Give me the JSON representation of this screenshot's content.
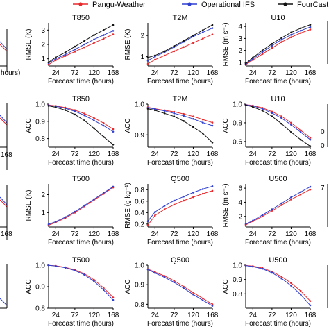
{
  "legend": {
    "placement": "top-center",
    "items": [
      {
        "label": "Pangu-Weather",
        "color": "#e8282b",
        "marker": "dot"
      },
      {
        "label": "Operational IFS",
        "color": "#2f3fd0",
        "marker": "dot"
      },
      {
        "label": "FourCastNet",
        "color": "#111111",
        "marker": "dot"
      }
    ]
  },
  "partial_edge_labels": {
    "left_col": [
      "hours)",
      "168",
      "168"
    ],
    "right_col": [
      "0",
      "0",
      "7"
    ]
  },
  "chart_data": [
    {
      "type": "line",
      "title": "T850",
      "xlabel": "Forecast time (hours)",
      "ylabel": "RMSE (K)",
      "xlim": [
        6,
        168
      ],
      "ylim": [
        0.5,
        3.5
      ],
      "xticks": [
        24,
        72,
        120,
        168
      ],
      "yticks": [
        1,
        2,
        3
      ],
      "ytick_labels": [
        "1",
        "2",
        "3"
      ],
      "x": [
        6,
        24,
        48,
        72,
        96,
        120,
        144,
        168
      ],
      "series": [
        {
          "name": "Pangu-Weather",
          "values": [
            0.6,
            0.9,
            1.2,
            1.5,
            1.8,
            2.1,
            2.4,
            2.7
          ]
        },
        {
          "name": "Operational IFS",
          "values": [
            0.7,
            1.0,
            1.3,
            1.65,
            2.0,
            2.35,
            2.65,
            2.95
          ]
        },
        {
          "name": "FourCastNet",
          "values": [
            0.75,
            1.1,
            1.45,
            1.85,
            2.25,
            2.65,
            3.0,
            3.35
          ]
        }
      ]
    },
    {
      "type": "line",
      "title": "T2M",
      "xlabel": "Forecast time (hours)",
      "ylabel": "RMSE (K)",
      "xlim": [
        6,
        168
      ],
      "ylim": [
        0.55,
        2.6
      ],
      "xticks": [
        24,
        72,
        120,
        168
      ],
      "yticks": [
        1,
        2
      ],
      "ytick_labels": [
        "1",
        "2"
      ],
      "x": [
        6,
        24,
        48,
        72,
        96,
        120,
        144,
        168
      ],
      "series": [
        {
          "name": "Pangu-Weather",
          "values": [
            0.65,
            0.85,
            1.05,
            1.25,
            1.45,
            1.65,
            1.85,
            2.05
          ]
        },
        {
          "name": "Operational IFS",
          "values": [
            0.8,
            1.0,
            1.2,
            1.45,
            1.7,
            1.95,
            2.15,
            2.35
          ]
        },
        {
          "name": "FourCastNet",
          "values": [
            0.95,
            1.05,
            1.25,
            1.5,
            1.75,
            2.0,
            2.25,
            2.5
          ]
        }
      ]
    },
    {
      "type": "line",
      "title": "U10",
      "xlabel": "Forecast time (hours)",
      "ylabel": "RMSE (m s⁻¹)",
      "xlim": [
        6,
        168
      ],
      "ylim": [
        0.7,
        4.3
      ],
      "xticks": [
        24,
        72,
        120,
        168
      ],
      "yticks": [
        1,
        2,
        3,
        4
      ],
      "ytick_labels": [
        "1",
        "2",
        "3",
        "4"
      ],
      "x": [
        6,
        24,
        48,
        72,
        96,
        120,
        144,
        168
      ],
      "series": [
        {
          "name": "Pangu-Weather",
          "values": [
            0.8,
            1.2,
            1.7,
            2.2,
            2.7,
            3.1,
            3.45,
            3.75
          ]
        },
        {
          "name": "Operational IFS",
          "values": [
            0.85,
            1.3,
            1.85,
            2.4,
            2.9,
            3.3,
            3.65,
            3.95
          ]
        },
        {
          "name": "FourCastNet",
          "values": [
            0.9,
            1.4,
            2.0,
            2.55,
            3.05,
            3.5,
            3.85,
            4.15
          ]
        }
      ]
    },
    {
      "type": "line",
      "title": "T850",
      "xlabel": "Forecast time (hours)",
      "ylabel": "ACC",
      "xlim": [
        6,
        168
      ],
      "ylim": [
        0.75,
        1.0
      ],
      "xticks": [
        24,
        72,
        120,
        168
      ],
      "yticks": [
        0.8,
        0.9,
        1.0
      ],
      "ytick_labels": [
        "0.8",
        "0.9",
        "1.0"
      ],
      "x": [
        6,
        24,
        48,
        72,
        96,
        120,
        144,
        168
      ],
      "series": [
        {
          "name": "Pangu-Weather",
          "values": [
            0.995,
            0.99,
            0.98,
            0.965,
            0.945,
            0.92,
            0.89,
            0.855
          ]
        },
        {
          "name": "Operational IFS",
          "values": [
            0.993,
            0.988,
            0.976,
            0.958,
            0.935,
            0.905,
            0.875,
            0.84
          ]
        },
        {
          "name": "FourCastNet",
          "values": [
            0.99,
            0.982,
            0.965,
            0.94,
            0.905,
            0.86,
            0.81,
            0.765
          ]
        }
      ]
    },
    {
      "type": "line",
      "title": "T2M",
      "xlabel": "Forecast time (hours)",
      "ylabel": "ACC",
      "xlim": [
        6,
        168
      ],
      "ylim": [
        0.86,
        1.0
      ],
      "xticks": [
        24,
        72,
        120,
        168
      ],
      "yticks": [
        0.9,
        1.0
      ],
      "ytick_labels": [
        "0.9",
        "1.0"
      ],
      "x": [
        6,
        24,
        48,
        72,
        96,
        120,
        144,
        168
      ],
      "series": [
        {
          "name": "Pangu-Weather",
          "values": [
            0.99,
            0.985,
            0.98,
            0.975,
            0.968,
            0.96,
            0.95,
            0.94
          ]
        },
        {
          "name": "Operational IFS",
          "values": [
            0.988,
            0.984,
            0.978,
            0.97,
            0.962,
            0.952,
            0.94,
            0.93
          ]
        },
        {
          "name": "FourCastNet",
          "values": [
            0.985,
            0.98,
            0.97,
            0.96,
            0.945,
            0.925,
            0.905,
            0.875
          ]
        }
      ]
    },
    {
      "type": "line",
      "title": "U10",
      "xlabel": "Forecast time (hours)",
      "ylabel": "ACC",
      "xlim": [
        6,
        168
      ],
      "ylim": [
        0.54,
        1.0
      ],
      "xticks": [
        24,
        72,
        120,
        168
      ],
      "yticks": [
        0.6,
        0.8,
        1.0
      ],
      "ytick_labels": [
        "0.6",
        "0.8",
        "1.0"
      ],
      "x": [
        6,
        24,
        48,
        72,
        96,
        120,
        144,
        168
      ],
      "series": [
        {
          "name": "Pangu-Weather",
          "values": [
            0.995,
            0.985,
            0.96,
            0.92,
            0.87,
            0.8,
            0.72,
            0.64
          ]
        },
        {
          "name": "Operational IFS",
          "values": [
            0.993,
            0.98,
            0.95,
            0.905,
            0.85,
            0.78,
            0.7,
            0.62
          ]
        },
        {
          "name": "FourCastNet",
          "values": [
            0.99,
            0.97,
            0.93,
            0.87,
            0.79,
            0.7,
            0.62,
            0.55
          ]
        }
      ]
    },
    {
      "type": "line",
      "title": "T500",
      "xlabel": "Forecast time (hours)",
      "ylabel": "RMSE (K)",
      "xlim": [
        6,
        168
      ],
      "ylim": [
        0.2,
        2.6
      ],
      "xticks": [
        24,
        72,
        120,
        168
      ],
      "yticks": [
        1,
        2
      ],
      "ytick_labels": [
        "1",
        "2"
      ],
      "x": [
        6,
        24,
        48,
        72,
        96,
        120,
        144,
        168
      ],
      "series": [
        {
          "name": "Pangu-Weather",
          "values": [
            0.3,
            0.45,
            0.7,
            1.0,
            1.35,
            1.7,
            2.05,
            2.4
          ]
        },
        {
          "name": "Operational IFS",
          "values": [
            0.35,
            0.5,
            0.75,
            1.05,
            1.4,
            1.75,
            2.1,
            2.45
          ]
        }
      ]
    },
    {
      "type": "line",
      "title": "Q500",
      "xlabel": "Forecast time (hours)",
      "ylabel": "RMSE (g kg⁻¹)",
      "xlim": [
        6,
        168
      ],
      "ylim": [
        0.15,
        0.9
      ],
      "xticks": [
        24,
        72,
        120,
        168
      ],
      "yticks": [
        0.2,
        0.4,
        0.6,
        0.8
      ],
      "ytick_labels": [
        "0.2",
        "0.4",
        "0.6",
        "0.8"
      ],
      "x": [
        6,
        24,
        48,
        72,
        96,
        120,
        144,
        168
      ],
      "series": [
        {
          "name": "Pangu-Weather",
          "values": [
            0.18,
            0.35,
            0.46,
            0.54,
            0.61,
            0.67,
            0.73,
            0.78
          ]
        },
        {
          "name": "Operational IFS",
          "values": [
            0.25,
            0.41,
            0.52,
            0.61,
            0.68,
            0.75,
            0.81,
            0.86
          ]
        }
      ]
    },
    {
      "type": "line",
      "title": "U500",
      "xlabel": "Forecast time (hours)",
      "ylabel": "RMSE (m s⁻¹)",
      "xlim": [
        6,
        168
      ],
      "ylim": [
        0.5,
        6.6
      ],
      "xticks": [
        24,
        72,
        120,
        168
      ],
      "yticks": [
        2,
        4,
        6
      ],
      "ytick_labels": [
        "2",
        "4",
        "6"
      ],
      "x": [
        6,
        24,
        48,
        72,
        96,
        120,
        144,
        168
      ],
      "series": [
        {
          "name": "Pangu-Weather",
          "values": [
            0.8,
            1.3,
            2.0,
            2.8,
            3.6,
            4.4,
            5.1,
            5.8
          ]
        },
        {
          "name": "Operational IFS",
          "values": [
            0.9,
            1.4,
            2.2,
            3.0,
            3.85,
            4.7,
            5.45,
            6.2
          ]
        }
      ]
    },
    {
      "type": "line",
      "title": "T500",
      "xlabel": "Forecast time (hours)",
      "ylabel": "ACC",
      "xlim": [
        6,
        168
      ],
      "ylim": [
        0.8,
        1.0
      ],
      "xticks": [
        24,
        72,
        120,
        168
      ],
      "yticks": [
        0.8,
        0.9,
        1.0
      ],
      "ytick_labels": [
        "0.8",
        "0.9",
        "1.0"
      ],
      "x": [
        6,
        24,
        48,
        72,
        96,
        120,
        144,
        168
      ],
      "series": [
        {
          "name": "Pangu-Weather",
          "values": [
            0.999,
            0.997,
            0.99,
            0.978,
            0.96,
            0.932,
            0.895,
            0.85
          ]
        },
        {
          "name": "Operational IFS",
          "values": [
            0.999,
            0.996,
            0.988,
            0.975,
            0.955,
            0.925,
            0.885,
            0.838
          ]
        }
      ]
    },
    {
      "type": "line",
      "title": "Q500",
      "xlabel": "Forecast time (hours)",
      "ylabel": "ACC",
      "xlim": [
        6,
        168
      ],
      "ylim": [
        0.78,
        1.0
      ],
      "xticks": [
        24,
        72,
        120,
        168
      ],
      "yticks": [
        0.8,
        0.9,
        1.0
      ],
      "ytick_labels": [
        "0.8",
        "0.9",
        "1.0"
      ],
      "x": [
        6,
        24,
        48,
        72,
        96,
        120,
        144,
        168
      ],
      "series": [
        {
          "name": "Pangu-Weather",
          "values": [
            0.98,
            0.965,
            0.945,
            0.92,
            0.89,
            0.86,
            0.83,
            0.8
          ]
        },
        {
          "name": "Operational IFS",
          "values": [
            0.978,
            0.96,
            0.938,
            0.912,
            0.882,
            0.85,
            0.82,
            0.792
          ]
        }
      ]
    },
    {
      "type": "line",
      "title": "U500",
      "xlabel": "Forecast time (hours)",
      "ylabel": "ACC",
      "xlim": [
        6,
        168
      ],
      "ylim": [
        0.7,
        1.0
      ],
      "xticks": [
        24,
        72,
        120,
        168
      ],
      "yticks": [
        0.8,
        0.9,
        1.0
      ],
      "ytick_labels": [
        "0.8",
        "0.9",
        "1.0"
      ],
      "x": [
        6,
        24,
        48,
        72,
        96,
        120,
        144,
        168
      ],
      "series": [
        {
          "name": "Pangu-Weather",
          "values": [
            0.998,
            0.993,
            0.98,
            0.955,
            0.92,
            0.875,
            0.82,
            0.75
          ]
        },
        {
          "name": "Operational IFS",
          "values": [
            0.997,
            0.99,
            0.975,
            0.947,
            0.907,
            0.857,
            0.795,
            0.72
          ]
        }
      ]
    }
  ]
}
